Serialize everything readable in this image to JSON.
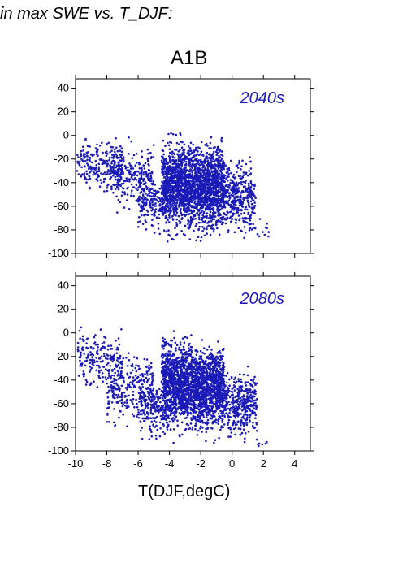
{
  "header": {
    "text": "in max SWE vs. T_DJF:",
    "scenario": "A1B"
  },
  "chart_data": [
    {
      "type": "scatter",
      "panel_label": "2040s",
      "xlabel": "T(DJF,degC)",
      "ylabel": "",
      "xlim": [
        -10,
        5
      ],
      "ylim": [
        -100,
        48
      ],
      "x_ticks": [
        -10,
        -8,
        -6,
        -4,
        -2,
        0,
        2,
        4
      ],
      "y_ticks": [
        40,
        20,
        0,
        -20,
        -40,
        -60,
        -80,
        -100
      ],
      "show_x_tick_labels": false,
      "grid": false,
      "color": "#1a1ab8",
      "clusters": [
        {
          "x_range": [
            -10,
            -7
          ],
          "y_range": [
            -60,
            10
          ],
          "count": 220
        },
        {
          "x_range": [
            -8,
            -5
          ],
          "y_range": [
            -75,
            8
          ],
          "count": 260
        },
        {
          "x_range": [
            -6,
            -4.5
          ],
          "y_range": [
            -92,
            -20
          ],
          "count": 150
        },
        {
          "x_range": [
            -4.5,
            -2.5
          ],
          "y_range": [
            -98,
            12
          ],
          "count": 1100
        },
        {
          "x_range": [
            -2.5,
            -0.5
          ],
          "y_range": [
            -98,
            10
          ],
          "count": 1100
        },
        {
          "x_range": [
            -0.5,
            1.5
          ],
          "y_range": [
            -98,
            -5
          ],
          "count": 380
        },
        {
          "x_range": [
            1.5,
            2.4
          ],
          "y_range": [
            -98,
            -60
          ],
          "count": 10
        }
      ]
    },
    {
      "type": "scatter",
      "panel_label": "2080s",
      "xlabel": "T(DJF,degC)",
      "ylabel": "",
      "xlim": [
        -10,
        5
      ],
      "ylim": [
        -100,
        48
      ],
      "x_ticks": [
        -10,
        -8,
        -6,
        -4,
        -2,
        0,
        2,
        4
      ],
      "x_tick_labels": [
        "-10",
        "-8",
        "-6",
        "-4",
        "-2",
        "0",
        "2",
        "4"
      ],
      "y_ticks": [
        40,
        20,
        0,
        -20,
        -40,
        -60,
        -80,
        -100
      ],
      "show_x_tick_labels": true,
      "grid": false,
      "color": "#1a1ab8",
      "clusters": [
        {
          "x_range": [
            -10,
            -7
          ],
          "y_range": [
            -60,
            15
          ],
          "count": 200
        },
        {
          "x_range": [
            -8,
            -5
          ],
          "y_range": [
            -92,
            -5
          ],
          "count": 280
        },
        {
          "x_range": [
            -6,
            -4.5
          ],
          "y_range": [
            -100,
            -30
          ],
          "count": 150
        },
        {
          "x_range": [
            -4.5,
            -2.5
          ],
          "y_range": [
            -100,
            14
          ],
          "count": 1100
        },
        {
          "x_range": [
            -2.5,
            -0.5
          ],
          "y_range": [
            -100,
            5
          ],
          "count": 1100
        },
        {
          "x_range": [
            -0.5,
            1.6
          ],
          "y_range": [
            -100,
            -20
          ],
          "count": 380
        },
        {
          "x_range": [
            1.6,
            2.3
          ],
          "y_range": [
            -98,
            -90
          ],
          "count": 6
        }
      ]
    }
  ]
}
